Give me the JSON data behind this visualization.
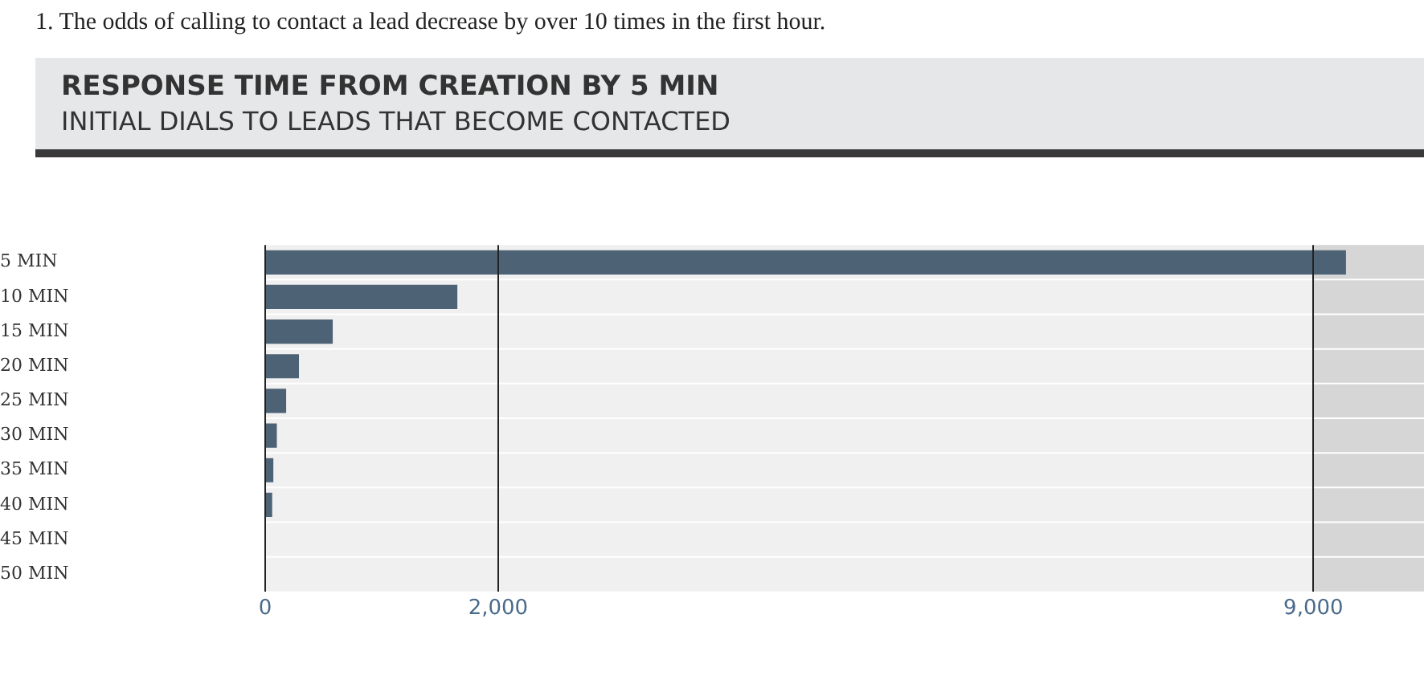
{
  "chart_data": {
    "type": "bar",
    "orientation": "horizontal",
    "title": "RESPONSE TIME FROM CREATION BY 5 MIN",
    "subtitle": "INITIAL DIALS TO LEADS THAT BECOME CONTACTED",
    "annotations": [
      "1. The odds of calling to contact a lead decrease by over 10 times in the first hour."
    ],
    "categories": [
      "5 MIN",
      "10 MIN",
      "15 MIN",
      "20 MIN",
      "25 MIN",
      "30 MIN",
      "35 MIN",
      "40 MIN",
      "45 MIN",
      "50 MIN"
    ],
    "values": [
      9280,
      1650,
      580,
      290,
      180,
      100,
      70,
      60,
      null,
      null
    ],
    "color": "#4d6275",
    "xlim": [
      0,
      9950
    ],
    "xticks": [
      0,
      {
        "value": 2000,
        "label": "2,000"
      },
      {
        "value": 9000,
        "label": "9,000"
      }
    ],
    "bands": [
      {
        "axis": "x",
        "from": 9000,
        "to": 9950,
        "color": "#d6d6d6"
      }
    ],
    "grid": "x",
    "legend": false
  }
}
